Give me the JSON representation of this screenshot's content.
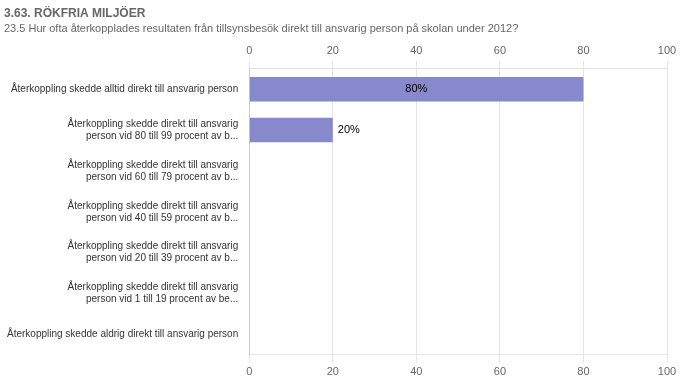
{
  "chart_data": {
    "type": "bar",
    "orientation": "horizontal",
    "title": "3.63. RÖKFRIA MILJÖER",
    "subtitle": "23.5 Hur ofta återkopplades resultaten från tillsynsbesök direkt till ansvarig person på skolan under 2012?",
    "categories": [
      "Återkoppling skedde alltid direkt till ansvarig person",
      "Återkoppling skedde direkt till ansvarig\nperson vid 80 till 99 procent av b...",
      "Återkoppling skedde direkt till ansvarig\nperson vid 60 till 79 procent av b...",
      "Återkoppling skedde direkt till ansvarig\nperson vid 40 till 59 procent av b...",
      "Återkoppling skedde direkt till ansvarig\nperson vid 20 till 39 procent av b...",
      "Återkoppling skedde direkt till ansvarig\nperson vid 1 till 19 procent av be...",
      "Återkoppling skedde aldrig direkt till ansvarig person"
    ],
    "values": [
      80,
      20,
      0,
      0,
      0,
      0,
      0
    ],
    "value_labels": [
      "80%",
      "20%",
      null,
      null,
      null,
      null,
      null
    ],
    "data_labels": true,
    "color": "#8888cc",
    "xlim": [
      0,
      100
    ],
    "xticks": [
      0,
      20,
      40,
      60,
      80,
      100
    ],
    "grid": true
  }
}
